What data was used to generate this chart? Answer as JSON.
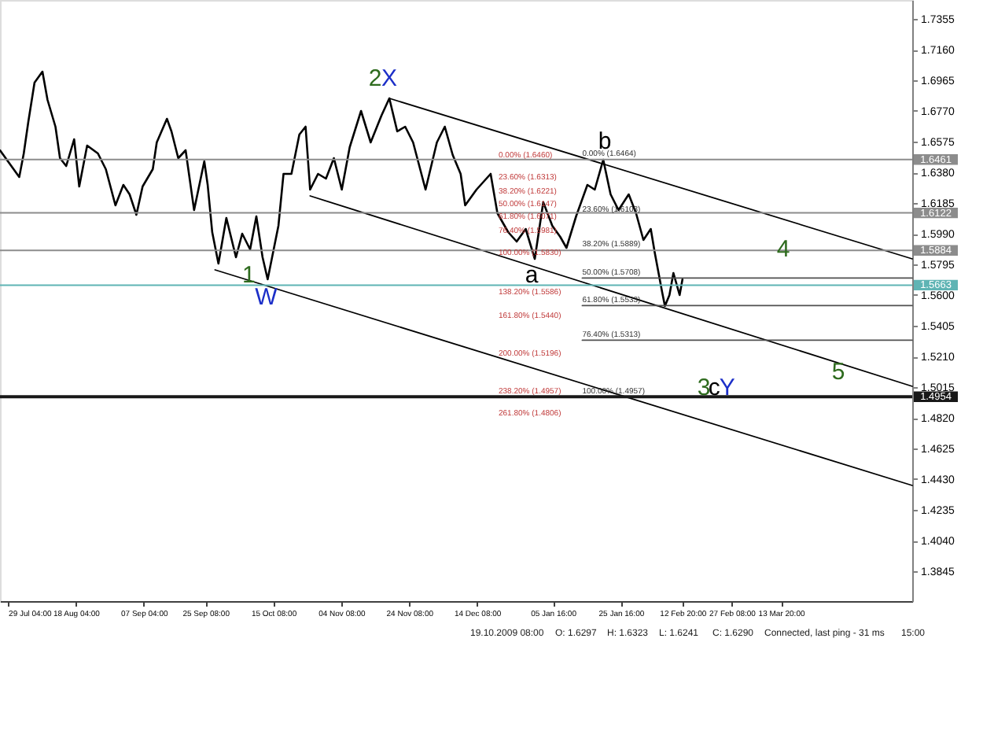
{
  "chart_data": {
    "type": "line",
    "series": [
      {
        "color": "#000000",
        "x": [
          "2009-07-26T20:00",
          "2009-07-29T04:00",
          "2009-08-01T12:00",
          "2009-08-02T20:00",
          "2009-08-04T04:00",
          "2009-08-06T00:00",
          "2009-08-08T08:00",
          "2009-08-09T20:00",
          "2009-08-12T04:00",
          "2009-08-13T12:00",
          "2009-08-15T08:00",
          "2009-08-17T16:00",
          "2009-08-19T04:00",
          "2009-08-21T12:00",
          "2009-08-24T16:00",
          "2009-08-27T00:00",
          "2009-08-29T20:00",
          "2009-09-01T04:00",
          "2009-09-03T00:00",
          "2009-09-05T00:00",
          "2009-09-06T20:00",
          "2009-09-09T20:00",
          "2009-09-11T00:00",
          "2009-09-14T00:00",
          "2009-09-15T08:00",
          "2009-09-17T08:00",
          "2009-09-19T12:00",
          "2009-09-22T00:00",
          "2009-09-25T00:00",
          "2009-09-26T00:00",
          "2009-09-27T08:00",
          "2009-09-29T04:00",
          "2009-10-01T12:00",
          "2009-10-04T08:00",
          "2009-10-06T04:00",
          "2009-10-08T12:00",
          "2009-10-10T08:00",
          "2009-10-12T04:00",
          "2009-10-13T16:00",
          "2009-10-16T20:00",
          "2009-10-18T08:00",
          "2009-10-20T16:00",
          "2009-10-23T00:00",
          "2009-10-24T20:00",
          "2009-10-26T04:00",
          "2009-10-28T12:00",
          "2009-10-30T20:00",
          "2009-11-02T04:00",
          "2009-11-04T12:00",
          "2009-11-06T20:00",
          "2009-11-10T04:00",
          "2009-11-13T00:00",
          "2009-11-16T04:00",
          "2009-11-18T12:00",
          "2009-11-20T20:00",
          "2009-11-23T04:00",
          "2009-11-25T12:00",
          "2009-11-29T04:00",
          "2009-12-02T12:00",
          "2009-12-04T20:00",
          "2009-12-07T04:00",
          "2009-12-09T12:00",
          "2009-12-10T20:00",
          "2009-12-14T04:00",
          "2009-12-18T08:00",
          "2009-12-20T08:00",
          "2009-12-23T12:00",
          "2009-12-26T00:00",
          "2009-12-28T16:00",
          "2009-12-31T08:00",
          "2010-01-02T20:00",
          "2010-01-05T12:00",
          "2010-01-07T20:00",
          "2010-01-09T16:00",
          "2010-01-12T12:00",
          "2010-01-15T20:00",
          "2010-01-18T00:00",
          "2010-01-20T12:00",
          "2010-01-22T16:00",
          "2010-01-25T00:00",
          "2010-01-28T00:00",
          "2010-01-30T04:00",
          "2010-02-01T08:00",
          "2010-02-03T12:00",
          "2010-02-04T16:00",
          "2010-02-06T20:00",
          "2010-02-07T16:00",
          "2010-02-09T00:00",
          "2010-02-10T04:00",
          "2010-02-12T00:00",
          "2010-02-12T20:00"
        ],
        "values": [
          1.652,
          1.645,
          1.635,
          1.65,
          1.67,
          1.695,
          1.702,
          1.684,
          1.667,
          1.647,
          1.642,
          1.659,
          1.629,
          1.655,
          1.65,
          1.64,
          1.617,
          1.63,
          1.624,
          1.611,
          1.629,
          1.64,
          1.657,
          1.672,
          1.664,
          1.647,
          1.652,
          1.614,
          1.645,
          1.63,
          1.6,
          1.58,
          1.609,
          1.584,
          1.599,
          1.589,
          1.61,
          1.584,
          1.57,
          1.604,
          1.637,
          1.637,
          1.662,
          1.667,
          1.627,
          1.637,
          1.634,
          1.647,
          1.627,
          1.654,
          1.677,
          1.657,
          1.674,
          1.685,
          1.664,
          1.667,
          1.657,
          1.627,
          1.657,
          1.667,
          1.649,
          1.637,
          1.617,
          1.627,
          1.637,
          1.612,
          1.6,
          1.594,
          1.602,
          1.583,
          1.619,
          1.604,
          1.597,
          1.59,
          1.61,
          1.63,
          1.627,
          1.646,
          1.624,
          1.614,
          1.624,
          1.612,
          1.595,
          1.602,
          1.587,
          1.562,
          1.553,
          1.56,
          1.574,
          1.56,
          1.57
        ]
      },
      {
        "type": "line",
        "color": "#000000",
        "x": [
          "2009-11-18T12:00",
          "2010-04-21T12:00"
        ],
        "values": [
          1.685,
          1.583
        ]
      },
      {
        "type": "line",
        "color": "#000000",
        "x": [
          "2009-10-26T04:00",
          "2010-04-21T12:00"
        ],
        "values": [
          1.623,
          1.502
        ]
      },
      {
        "type": "line",
        "color": "#000000",
        "x": [
          "2009-09-28T04:00",
          "2010-04-21T12:00"
        ],
        "values": [
          1.576,
          1.439
        ]
      },
      {
        "type": "line",
        "color": "#505050",
        "x": [
          "2010-01-14T08:00",
          "2010-04-21T12:00"
        ],
        "values": [
          1.5708,
          1.5708
        ]
      },
      {
        "type": "line",
        "color": "#505050",
        "x": [
          "2010-01-14T08:00",
          "2010-04-21T12:00"
        ],
        "values": [
          1.5533,
          1.5533
        ]
      },
      {
        "type": "line",
        "color": "#505050",
        "x": [
          "2010-01-14T08:00",
          "2010-04-21T12:00"
        ],
        "values": [
          1.5313,
          1.5313
        ]
      }
    ],
    "xlim": [
      "2009-07-26T20:00",
      "2010-04-21T12:00"
    ],
    "xticks": [
      {
        "value": "2009-07-29T04:00",
        "label": "29 Jul 04:00"
      },
      {
        "value": "2009-08-18T04:00",
        "label": "18 Aug 04:00"
      },
      {
        "value": "2009-09-07T04:00",
        "label": "07 Sep 04:00"
      },
      {
        "value": "2009-09-25T08:00",
        "label": "25 Sep 08:00"
      },
      {
        "value": "2009-10-15T08:00",
        "label": "15 Oct 08:00"
      },
      {
        "value": "2009-11-04T08:00",
        "label": "04 Nov 08:00"
      },
      {
        "value": "2009-11-24T08:00",
        "label": "24 Nov 08:00"
      },
      {
        "value": "2009-12-14T08:00",
        "label": "14 Dec 08:00"
      },
      {
        "value": "2010-01-05T16:00",
        "label": "05 Jan 16:00"
      },
      {
        "value": "2010-01-25T16:00",
        "label": "25 Jan 16:00"
      },
      {
        "value": "2010-02-12T20:00",
        "label": "12 Feb 20:00"
      },
      {
        "value": "2010-02-27T08:00",
        "label": "27 Feb 08:00"
      },
      {
        "value": "2010-03-13T20:00",
        "label": "13 Mar 20:00"
      }
    ],
    "ylim": [
      1.3655,
      1.7475
    ],
    "yticks": [
      1.7355,
      {
        "value": 1.716,
        "label": "1.7160"
      },
      1.6965,
      {
        "value": 1.677,
        "label": "1.6770"
      },
      1.6575,
      {
        "value": 1.638,
        "label": "1.6380"
      },
      1.6185,
      {
        "value": 1.599,
        "label": "1.5990"
      },
      1.5795,
      {
        "value": 1.56,
        "label": "1.5600"
      },
      1.5405,
      {
        "value": 1.521,
        "label": "1.5210"
      },
      1.5015,
      {
        "value": 1.482,
        "label": "1.4820"
      },
      1.4625,
      {
        "value": 1.443,
        "label": "1.4430"
      },
      1.4235,
      {
        "value": 1.404,
        "label": "1.4040"
      },
      1.3845
    ],
    "ref_lines": [
      {
        "axis": "y",
        "value": 1.6461,
        "label": "1.6461",
        "color": "#8c8c8c"
      },
      {
        "axis": "y",
        "value": 1.6122,
        "label": "1.6122",
        "color": "#8c8c8c"
      },
      {
        "axis": "y",
        "value": 1.5884,
        "label": "1.5884",
        "color": "#8c8c8c"
      },
      {
        "axis": "y",
        "value": 1.5663,
        "label": "1.5663",
        "color": "#5fb4b4"
      },
      {
        "axis": "y",
        "value": 1.4954,
        "label": "1.4954",
        "color": "#181818"
      }
    ],
    "annotations": [
      "0.00% (1.6460)",
      "23.60% (1.6313)",
      "38.20% (1.6221)",
      "50.00% (1.6147)",
      "61.80% (1.6071)",
      "76.40% (1.5981)",
      "100.00% (1.5830)",
      "138.20% (1.5586)",
      "161.80% (1.5440)",
      "200.00% (1.5196)",
      "238.20% (1.4957)",
      "261.80% (1.4806)",
      {
        "text": "0.00% (1.6464)",
        "x": "2010-01-14T08:00",
        "y": 1.6464
      },
      {
        "text": "23.60% (1.6108)",
        "x": "2010-01-14T08:00",
        "y": 1.6108
      },
      {
        "text": "38.20% (1.5889)",
        "x": "2010-01-14T08:00",
        "y": 1.5889
      },
      {
        "text": "50.00% (1.5708)",
        "x": "2010-01-14T08:00",
        "y": 1.5708
      },
      {
        "text": "61.80% (1.5533)",
        "x": "2010-01-14T08:00",
        "y": 1.5533
      },
      {
        "text": "76.40% (1.5313)",
        "x": "2010-01-14T08:00",
        "y": 1.5313
      },
      {
        "text": "100.00% (1.4957)",
        "x": "2010-01-14T08:00",
        "y": 1.4957
      },
      {
        "text": "2",
        "x": "2009-11-18T12:00",
        "y": 1.685
      },
      {
        "text": "X",
        "x": "2009-11-18T12:00",
        "y": 1.685
      },
      {
        "text": "1",
        "x": "2009-10-13T16:00",
        "y": 1.57
      },
      {
        "text": "W",
        "x": "2009-10-13T16:00",
        "y": 1.57
      },
      {
        "text": "a",
        "x": "2009-12-31T08:00",
        "y": 1.583
      },
      {
        "text": "b",
        "x": "2010-01-20T12:00",
        "y": 1.646
      },
      {
        "text": "3",
        "x": "2010-02-19T04:00",
        "y": 1.4954
      },
      {
        "text": "c",
        "x": "2010-02-22T04:00",
        "y": 1.4954
      },
      {
        "text": "Y",
        "x": "2010-02-26T00:00",
        "y": 1.4954
      },
      "4",
      "5",
      "19.10.2009 08:00",
      "O: 1.6297",
      "H: 1.6323",
      "L: 1.6241",
      "C: 1.6290",
      "Connected, last ping - 31 ms",
      "15:00"
    ]
  }
}
